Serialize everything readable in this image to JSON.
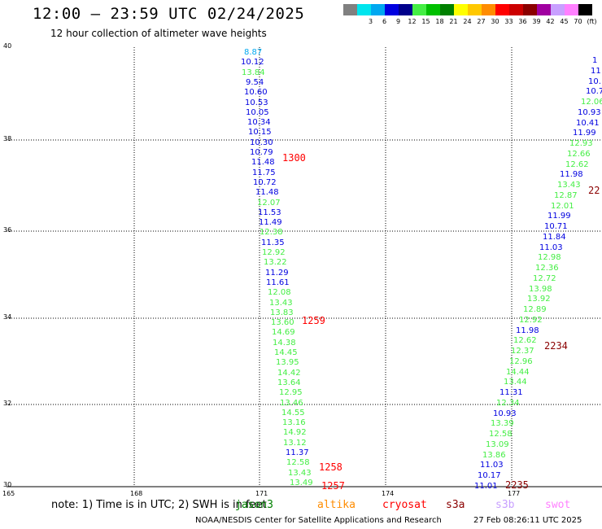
{
  "header": {
    "title": "12:00 – 23:59 UTC 02/24/2025",
    "subtitle": "12 hour collection of altimeter wave heights"
  },
  "scale": {
    "swatches": [
      {
        "color": "#808080",
        "label": ""
      },
      {
        "color": "#00e5ee",
        "label": "3"
      },
      {
        "color": "#00a8f0",
        "label": "6"
      },
      {
        "color": "#0000e0",
        "label": "9"
      },
      {
        "color": "#00008b",
        "label": "12"
      },
      {
        "color": "#44ee44",
        "label": "15"
      },
      {
        "color": "#00c000",
        "label": "18"
      },
      {
        "color": "#008000",
        "label": "21"
      },
      {
        "color": "#ffff00",
        "label": "24"
      },
      {
        "color": "#ffc800",
        "label": "27"
      },
      {
        "color": "#ff8c00",
        "label": "30"
      },
      {
        "color": "#ff0000",
        "label": "33"
      },
      {
        "color": "#cc0000",
        "label": "36"
      },
      {
        "color": "#8b0000",
        "label": "39"
      },
      {
        "color": "#a000a0",
        "label": "42"
      },
      {
        "color": "#c8a0ff",
        "label": "45"
      },
      {
        "color": "#ff80ff",
        "label": "70"
      },
      {
        "color": "#000000",
        "label": "(ft)"
      }
    ]
  },
  "axes": {
    "y_labels": [
      "40",
      "38",
      "36",
      "34",
      "32",
      "30"
    ],
    "x_labels": [
      "165",
      "168",
      "171",
      "174",
      "177"
    ]
  },
  "track_left": {
    "values": [
      {
        "v": "8.87",
        "c": "#00a8f0"
      },
      {
        "v": "10.12",
        "c": "#0000e0"
      },
      {
        "v": "13.84",
        "c": "#44ee44"
      },
      {
        "v": "9.54",
        "c": "#0000e0"
      },
      {
        "v": "10.60",
        "c": "#0000e0"
      },
      {
        "v": "10.53",
        "c": "#0000e0"
      },
      {
        "v": "10.05",
        "c": "#0000e0"
      },
      {
        "v": "10.34",
        "c": "#0000e0"
      },
      {
        "v": "10.15",
        "c": "#0000e0"
      },
      {
        "v": "10.30",
        "c": "#0000e0"
      },
      {
        "v": "10.79",
        "c": "#0000e0"
      },
      {
        "v": "11.48",
        "c": "#0000e0"
      },
      {
        "v": "11.75",
        "c": "#0000e0"
      },
      {
        "v": "10.72",
        "c": "#0000e0"
      },
      {
        "v": "11.48",
        "c": "#0000e0"
      },
      {
        "v": "12.07",
        "c": "#44ee44"
      },
      {
        "v": "11.53",
        "c": "#0000e0"
      },
      {
        "v": "11.49",
        "c": "#0000e0"
      },
      {
        "v": "12.38",
        "c": "#44ee44"
      },
      {
        "v": "11.35",
        "c": "#0000e0"
      },
      {
        "v": "12.92",
        "c": "#44ee44"
      },
      {
        "v": "13.22",
        "c": "#44ee44"
      },
      {
        "v": "11.29",
        "c": "#0000e0"
      },
      {
        "v": "11.61",
        "c": "#0000e0"
      },
      {
        "v": "12.08",
        "c": "#44ee44"
      },
      {
        "v": "13.43",
        "c": "#44ee44"
      },
      {
        "v": "13.83",
        "c": "#44ee44"
      },
      {
        "v": "13.60",
        "c": "#44ee44"
      },
      {
        "v": "14.69",
        "c": "#44ee44"
      },
      {
        "v": "14.38",
        "c": "#44ee44"
      },
      {
        "v": "14.45",
        "c": "#44ee44"
      },
      {
        "v": "13.95",
        "c": "#44ee44"
      },
      {
        "v": "14.42",
        "c": "#44ee44"
      },
      {
        "v": "13.64",
        "c": "#44ee44"
      },
      {
        "v": "12.95",
        "c": "#44ee44"
      },
      {
        "v": "13.46",
        "c": "#44ee44"
      },
      {
        "v": "14.55",
        "c": "#44ee44"
      },
      {
        "v": "13.16",
        "c": "#44ee44"
      },
      {
        "v": "14.92",
        "c": "#44ee44"
      },
      {
        "v": "13.12",
        "c": "#44ee44"
      },
      {
        "v": "11.37",
        "c": "#0000e0"
      },
      {
        "v": "12.58",
        "c": "#44ee44"
      },
      {
        "v": "13.43",
        "c": "#44ee44"
      },
      {
        "v": "13.49",
        "c": "#44ee44"
      }
    ],
    "times": [
      "1300",
      "1259",
      "1258",
      "1257"
    ]
  },
  "track_right": {
    "values": [
      {
        "v": "1",
        "c": "#0000e0"
      },
      {
        "v": "11",
        "c": "#0000e0"
      },
      {
        "v": "10.",
        "c": "#0000e0"
      },
      {
        "v": "10.7",
        "c": "#0000e0"
      },
      {
        "v": "12.06",
        "c": "#44ee44"
      },
      {
        "v": "10.93",
        "c": "#0000e0"
      },
      {
        "v": "10.41",
        "c": "#0000e0"
      },
      {
        "v": "11.99",
        "c": "#0000e0"
      },
      {
        "v": "12.93",
        "c": "#44ee44"
      },
      {
        "v": "12.66",
        "c": "#44ee44"
      },
      {
        "v": "12.62",
        "c": "#44ee44"
      },
      {
        "v": "11.98",
        "c": "#0000e0"
      },
      {
        "v": "13.43",
        "c": "#44ee44"
      },
      {
        "v": "12.87",
        "c": "#44ee44"
      },
      {
        "v": "12.01",
        "c": "#44ee44"
      },
      {
        "v": "11.99",
        "c": "#0000e0"
      },
      {
        "v": "10.71",
        "c": "#0000e0"
      },
      {
        "v": "11.84",
        "c": "#0000e0"
      },
      {
        "v": "11.03",
        "c": "#0000e0"
      },
      {
        "v": "12.98",
        "c": "#44ee44"
      },
      {
        "v": "12.36",
        "c": "#44ee44"
      },
      {
        "v": "12.72",
        "c": "#44ee44"
      },
      {
        "v": "13.98",
        "c": "#44ee44"
      },
      {
        "v": "13.92",
        "c": "#44ee44"
      },
      {
        "v": "12.89",
        "c": "#44ee44"
      },
      {
        "v": "12.92",
        "c": "#44ee44"
      },
      {
        "v": "11.98",
        "c": "#0000e0"
      },
      {
        "v": "12.62",
        "c": "#44ee44"
      },
      {
        "v": "12.37",
        "c": "#44ee44"
      },
      {
        "v": "12.96",
        "c": "#44ee44"
      },
      {
        "v": "14.44",
        "c": "#44ee44"
      },
      {
        "v": "13.44",
        "c": "#44ee44"
      },
      {
        "v": "11.31",
        "c": "#0000e0"
      },
      {
        "v": "12.34",
        "c": "#44ee44"
      },
      {
        "v": "10.93",
        "c": "#0000e0"
      },
      {
        "v": "13.39",
        "c": "#44ee44"
      },
      {
        "v": "12.58",
        "c": "#44ee44"
      },
      {
        "v": "13.09",
        "c": "#44ee44"
      },
      {
        "v": "13.86",
        "c": "#44ee44"
      },
      {
        "v": "11.03",
        "c": "#0000e0"
      },
      {
        "v": "10.17",
        "c": "#0000e0"
      },
      {
        "v": "11.01",
        "c": "#0000e0"
      }
    ],
    "times": [
      "22",
      "2234",
      "2235"
    ]
  },
  "note": "note:  1) Time is in UTC; 2) SWH is in feet",
  "legend": [
    {
      "label": "jason3",
      "color": "#008000"
    },
    {
      "label": "altika",
      "color": "#ff8c00"
    },
    {
      "label": "cryosat",
      "color": "#ff0000"
    },
    {
      "label": "s3a",
      "color": "#8b0000"
    },
    {
      "label": "s3b",
      "color": "#c8a0ff"
    },
    {
      "label": "swot",
      "color": "#ff80ff"
    }
  ],
  "footer": {
    "credit": "NOAA/NESDIS Center for Satellite Applications and Research",
    "timestamp": "27 Feb 08:26:11 UTC 2025"
  }
}
